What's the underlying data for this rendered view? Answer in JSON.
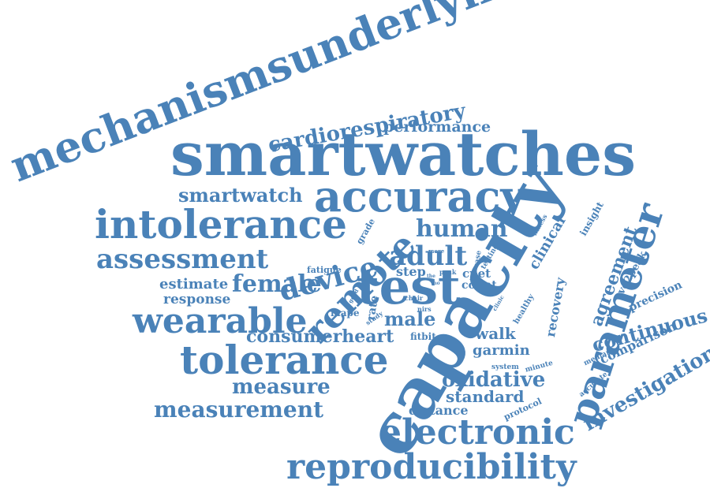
{
  "word_cloud": {
    "color": "#4a82b8",
    "words": [
      "mechanismsunderlying",
      "smartwatches",
      "accuracy",
      "capacity",
      "test",
      "remote",
      "intolerance",
      "tolerance",
      "electronic",
      "reproducibility",
      "parameter",
      "cardiorespiratory",
      "performance",
      "smartwatch",
      "human",
      "adult",
      "device",
      "assessment",
      "wearable",
      "female",
      "estimate",
      "response",
      "fatigue",
      "consumerheart",
      "measure",
      "measurement",
      "male",
      "mape",
      "rate",
      "step",
      "cpet",
      "count",
      "peak",
      "the",
      "chair",
      "good",
      "study",
      "nirs",
      "ino",
      "more",
      "grade",
      "case",
      "testing",
      "clinical",
      "fitness",
      "insight",
      "clinic",
      "healthy",
      "recovery",
      "agreement",
      "vo2peak",
      "precision",
      "continuous",
      "comparison",
      "investigation",
      "median",
      "accurate",
      "minute",
      "system",
      "protocol",
      "walk",
      "garmin",
      "fitbit",
      "oxidative",
      "standard",
      "distance"
    ]
  }
}
